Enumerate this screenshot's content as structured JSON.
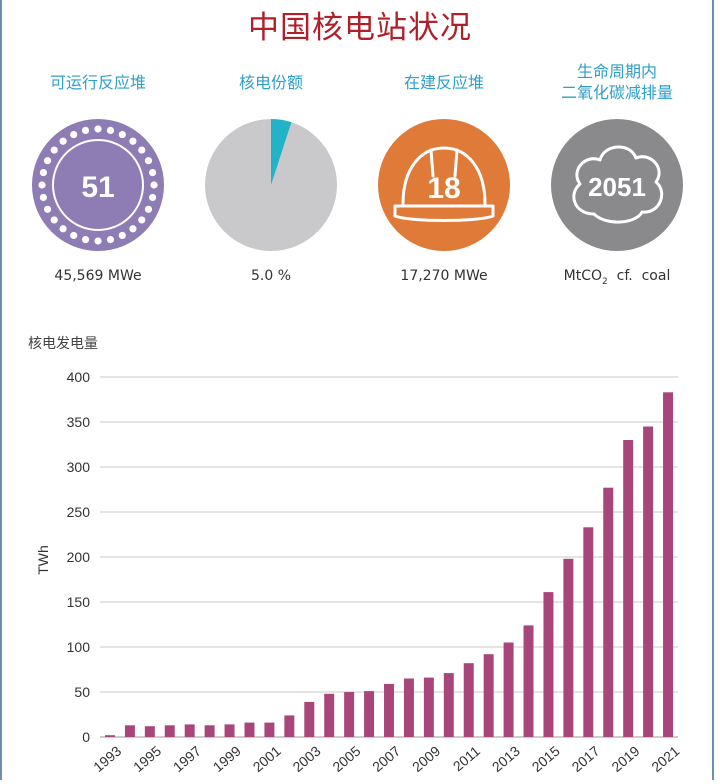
{
  "page": {
    "title": "中国核电站状况"
  },
  "stats": [
    {
      "label": "可运行反应堆",
      "value": "51",
      "sub": "45,569  MWe",
      "icon": "reactor-ring-icon",
      "color": "#8e7cb5"
    },
    {
      "label": "核电份额",
      "value": "",
      "sub": "5.0 %",
      "icon": "pie-share-icon",
      "color": "#c9c9cb",
      "accent": "#22b3c9",
      "share_percent": 5.0
    },
    {
      "label": "在建反应堆",
      "value": "18",
      "sub": "17,270  MWe",
      "icon": "hard-hat-icon",
      "color": "#df7a38"
    },
    {
      "label_lines": [
        "生命周期内",
        "二氧化碳减排量"
      ],
      "value": "2051",
      "sub_main": "MtCO",
      "sub_subscript": "2",
      "sub_tail": "  cf.  coal",
      "icon": "cloud-icon",
      "color": "#8a8a8c"
    }
  ],
  "chart_data": {
    "type": "bar",
    "title": "核电发电量",
    "ylabel": "TWh",
    "xlabel": "",
    "ylim": [
      0,
      400
    ],
    "yticks": [
      0,
      50,
      100,
      150,
      200,
      250,
      300,
      350,
      400
    ],
    "grid": true,
    "bar_color": "#a8457a",
    "categories": [
      "1993",
      "1994",
      "1995",
      "1996",
      "1997",
      "1998",
      "1999",
      "2000",
      "2001",
      "2002",
      "2003",
      "2004",
      "2005",
      "2006",
      "2007",
      "2008",
      "2009",
      "2010",
      "2011",
      "2012",
      "2013",
      "2014",
      "2015",
      "2016",
      "2017",
      "2018",
      "2019",
      "2020",
      "2021"
    ],
    "tick_labels": [
      "1993",
      "1995",
      "1997",
      "1999",
      "2001",
      "2003",
      "2005",
      "2007",
      "2009",
      "2011",
      "2013",
      "2015",
      "2017",
      "2019",
      "2021"
    ],
    "values": [
      2,
      13,
      12,
      13,
      14,
      13,
      14,
      16,
      16,
      24,
      39,
      48,
      50,
      51,
      59,
      65,
      66,
      71,
      82,
      92,
      105,
      124,
      161,
      198,
      233,
      277,
      330,
      345,
      383
    ]
  }
}
